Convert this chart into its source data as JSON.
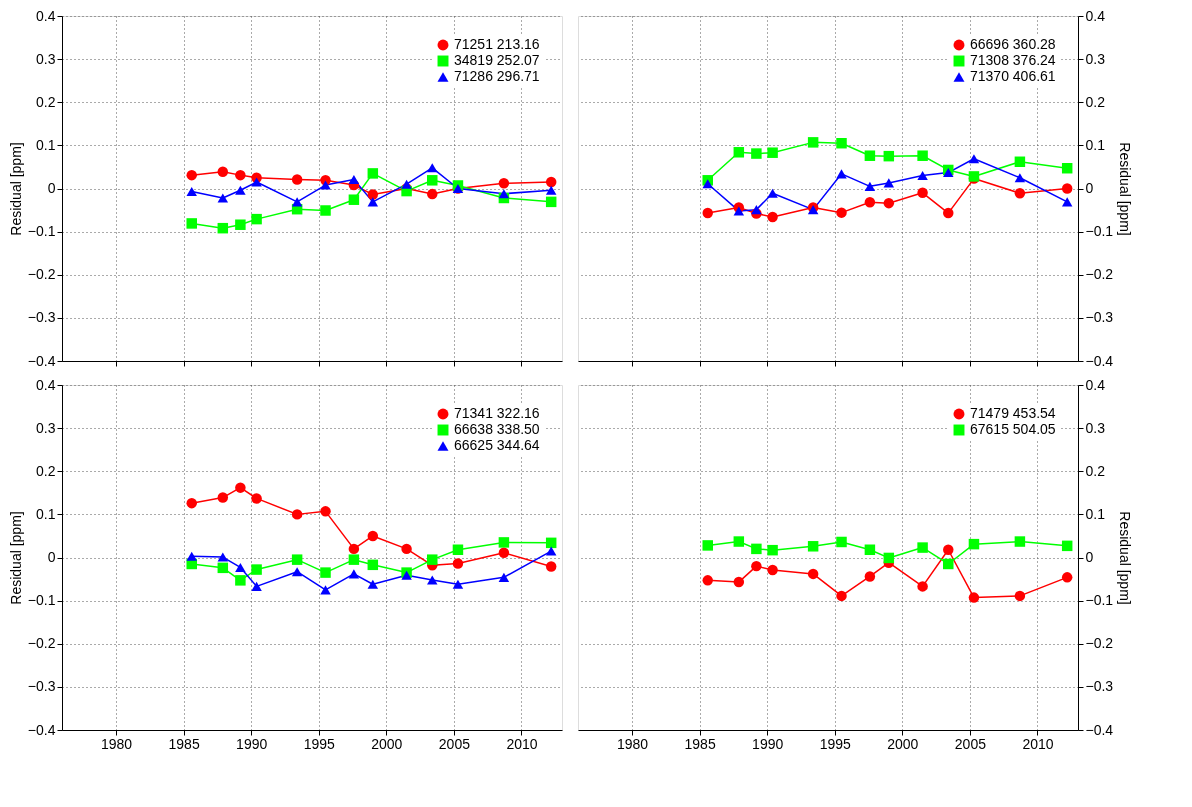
{
  "chart_data": [
    {
      "type": "line",
      "ylabel": "Residual [ppm]",
      "xlim": [
        1976,
        2013
      ],
      "xticks": [
        1980,
        1985,
        1990,
        1995,
        2000,
        2005,
        2010
      ],
      "ylim": [
        -0.4,
        0.4
      ],
      "yticks": [
        {
          "value": -0.4,
          "label": "−0.4"
        },
        {
          "value": -0.3,
          "label": "−0.3"
        },
        {
          "value": -0.2,
          "label": "−0.2"
        },
        {
          "value": -0.1,
          "label": "−0.1"
        },
        0,
        0.1,
        0.2,
        0.3,
        0.4
      ],
      "grid": true,
      "legend": "top right",
      "tick_labels": "y",
      "line_style": "solid",
      "x": [
        1985.6,
        1987.9,
        1989.2,
        1990.4,
        1993.4,
        1995.5,
        1997.6,
        1999.0,
        2001.5,
        2003.4,
        2005.3,
        2008.7,
        2012.2
      ],
      "series": [
        {
          "name": "71251 213.16",
          "color": "#ff0000",
          "marker": "circle",
          "values": [
            0.031,
            0.039,
            0.031,
            0.025,
            0.021,
            0.019,
            0.008,
            -0.014,
            0.0,
            -0.013,
            0.0,
            0.012,
            0.015
          ]
        },
        {
          "name": "34819 252.07",
          "color": "#00ff00",
          "marker": "square",
          "values": [
            -0.081,
            -0.092,
            -0.084,
            -0.071,
            -0.048,
            -0.051,
            -0.026,
            0.035,
            -0.006,
            0.019,
            0.007,
            -0.022,
            -0.031
          ]
        },
        {
          "name": "71286 296.71",
          "color": "#0000ff",
          "marker": "triangle",
          "values": [
            -0.007,
            -0.022,
            -0.004,
            0.015,
            -0.031,
            0.008,
            0.021,
            -0.031,
            0.01,
            0.048,
            0.0,
            -0.012,
            -0.004
          ]
        }
      ]
    },
    {
      "type": "line",
      "ylabel": "Residual [ppm]",
      "xlim": [
        1976,
        2013
      ],
      "xticks": [
        1980,
        1985,
        1990,
        1995,
        2000,
        2005,
        2010
      ],
      "ylim": [
        -0.4,
        0.4
      ],
      "yticks": [
        {
          "value": -0.4,
          "label": "−0.4"
        },
        {
          "value": -0.3,
          "label": "−0.3"
        },
        {
          "value": -0.2,
          "label": "−0.2"
        },
        {
          "value": -0.1,
          "label": "−0.1"
        },
        0,
        0.1,
        0.2,
        0.3,
        0.4
      ],
      "grid": true,
      "legend": "top right",
      "tick_labels": "y",
      "line_style": "solid",
      "x": [
        1985.6,
        1987.9,
        1989.2,
        1990.4,
        1993.4,
        1995.5,
        1997.6,
        1999.0,
        2001.5,
        2003.4,
        2005.3,
        2008.7,
        2012.2
      ],
      "series": [
        {
          "name": "66696 360.28",
          "color": "#ff0000",
          "marker": "circle",
          "values": [
            -0.057,
            -0.044,
            -0.058,
            -0.066,
            -0.044,
            -0.056,
            -0.032,
            -0.034,
            -0.01,
            -0.057,
            0.023,
            -0.011,
            0.0
          ]
        },
        {
          "name": "71308 376.24",
          "color": "#00ff00",
          "marker": "square",
          "values": [
            0.019,
            0.084,
            0.081,
            0.083,
            0.107,
            0.105,
            0.076,
            0.075,
            0.076,
            0.043,
            0.028,
            0.062,
            0.047
          ]
        },
        {
          "name": "71370 406.61",
          "color": "#0000ff",
          "marker": "triangle",
          "values": [
            0.011,
            -0.052,
            -0.049,
            -0.011,
            -0.049,
            0.034,
            0.005,
            0.013,
            0.03,
            0.037,
            0.069,
            0.025,
            -0.031
          ]
        }
      ]
    },
    {
      "type": "line",
      "ylabel": "Residual [ppm]",
      "xlim": [
        1976,
        2013
      ],
      "xticks": [
        1980,
        1985,
        1990,
        1995,
        2000,
        2005,
        2010
      ],
      "ylim": [
        -0.4,
        0.4
      ],
      "yticks": [
        {
          "value": -0.4,
          "label": "−0.4"
        },
        {
          "value": -0.3,
          "label": "−0.3"
        },
        {
          "value": -0.2,
          "label": "−0.2"
        },
        {
          "value": -0.1,
          "label": "−0.1"
        },
        0,
        0.1,
        0.2,
        0.3,
        0.4
      ],
      "grid": true,
      "legend": "top right",
      "line_style": "solid",
      "x": [
        1985.6,
        1987.9,
        1989.2,
        1990.4,
        1993.4,
        1995.5,
        1997.6,
        1999.0,
        2001.5,
        2003.4,
        2005.3,
        2008.7,
        2012.2
      ],
      "series": [
        {
          "name": "71341 322.16",
          "color": "#ff0000",
          "marker": "circle",
          "values": [
            0.126,
            0.139,
            0.162,
            0.137,
            0.1,
            0.107,
            0.02,
            0.05,
            0.02,
            -0.018,
            -0.014,
            0.011,
            -0.021
          ]
        },
        {
          "name": "66638 338.50",
          "color": "#00ff00",
          "marker": "square",
          "values": [
            -0.015,
            -0.024,
            -0.053,
            -0.028,
            -0.005,
            -0.035,
            -0.005,
            -0.017,
            -0.035,
            -0.005,
            0.018,
            0.035,
            0.034
          ]
        },
        {
          "name": "66625 344.64",
          "color": "#0000ff",
          "marker": "triangle",
          "values": [
            0.003,
            0.001,
            -0.023,
            -0.067,
            -0.033,
            -0.075,
            -0.038,
            -0.062,
            -0.041,
            -0.052,
            -0.062,
            -0.046,
            0.015
          ]
        }
      ]
    },
    {
      "type": "line",
      "ylabel": "Residual [ppm]",
      "xlim": [
        1976,
        2013
      ],
      "xticks": [
        1980,
        1985,
        1990,
        1995,
        2000,
        2005,
        2010
      ],
      "ylim": [
        -0.4,
        0.4
      ],
      "yticks": [
        {
          "value": -0.4,
          "label": "−0.4"
        },
        {
          "value": -0.3,
          "label": "−0.3"
        },
        {
          "value": -0.2,
          "label": "−0.2"
        },
        {
          "value": -0.1,
          "label": "−0.1"
        },
        0,
        0.1,
        0.2,
        0.3,
        0.4
      ],
      "grid": true,
      "legend": "top right",
      "line_style": "solid",
      "x": [
        1985.6,
        1987.9,
        1989.2,
        1990.4,
        1993.4,
        1995.5,
        1997.6,
        1999.0,
        2001.5,
        2003.4,
        2005.3,
        2008.7,
        2012.2
      ],
      "series": [
        {
          "name": "71479 453.54",
          "color": "#ff0000",
          "marker": "circle",
          "values": [
            -0.053,
            -0.057,
            -0.02,
            -0.029,
            -0.038,
            -0.089,
            -0.044,
            -0.012,
            -0.067,
            0.018,
            -0.093,
            -0.089,
            -0.046
          ]
        },
        {
          "name": "67615 504.05",
          "color": "#00ff00",
          "marker": "square",
          "values": [
            0.028,
            0.037,
            0.02,
            0.017,
            0.026,
            0.036,
            0.018,
            -0.001,
            0.023,
            -0.015,
            0.031,
            0.037,
            0.027
          ]
        }
      ]
    }
  ]
}
